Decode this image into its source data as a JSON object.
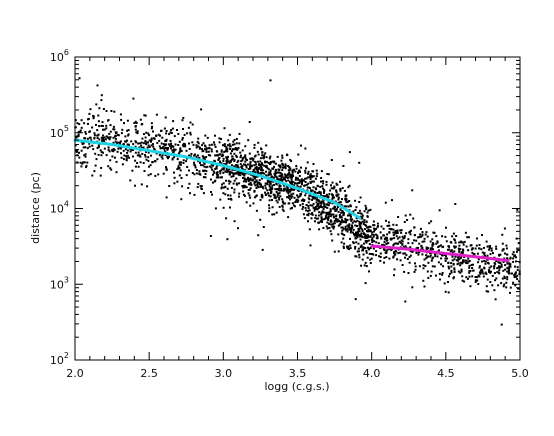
{
  "chart_data": {
    "type": "scatter",
    "xlabel": "logg (c.g.s.)",
    "ylabel": "distance (pc)",
    "xlim": [
      2.0,
      5.0
    ],
    "ylim": [
      100,
      1000000
    ],
    "y_scale": "log",
    "grid": false,
    "x_ticks": [
      {
        "value": 2.0,
        "label": "2.0"
      },
      {
        "value": 2.5,
        "label": "2.5"
      },
      {
        "value": 3.0,
        "label": "3.0"
      },
      {
        "value": 3.5,
        "label": "3.5"
      },
      {
        "value": 4.0,
        "label": "4.0"
      },
      {
        "value": 4.5,
        "label": "4.5"
      },
      {
        "value": 5.0,
        "label": "5.0"
      }
    ],
    "y_ticks": [
      {
        "value": 100,
        "base": "10",
        "exp": "2"
      },
      {
        "value": 1000,
        "base": "10",
        "exp": "3"
      },
      {
        "value": 10000,
        "base": "10",
        "exp": "4"
      },
      {
        "value": 100000,
        "base": "10",
        "exp": "5"
      },
      {
        "value": 1000000,
        "base": "10",
        "exp": "6"
      }
    ],
    "scatter_trend": [
      {
        "x": 2.0,
        "logy_center": 4.92,
        "logy_spread": 0.17
      },
      {
        "x": 2.5,
        "logy_center": 4.8,
        "logy_spread": 0.18
      },
      {
        "x": 3.0,
        "logy_center": 4.58,
        "logy_spread": 0.18
      },
      {
        "x": 3.5,
        "logy_center": 4.3,
        "logy_spread": 0.17
      },
      {
        "x": 4.0,
        "logy_center": 3.6,
        "logy_spread": 0.18
      },
      {
        "x": 4.5,
        "logy_center": 3.38,
        "logy_spread": 0.16
      },
      {
        "x": 5.0,
        "logy_center": 3.22,
        "logy_spread": 0.17
      }
    ],
    "point_color": "#000000",
    "series": [
      {
        "color": "#22d3e6",
        "x": [
          2.0,
          2.25,
          2.5,
          2.75,
          3.0,
          3.25,
          3.5,
          3.75,
          3.92
        ],
        "y": [
          80000,
          70000,
          58000,
          48000,
          37000,
          27000,
          18500,
          12000,
          7500
        ]
      },
      {
        "color": "#e020c8",
        "x": [
          4.0,
          4.25,
          4.5,
          4.75,
          4.92
        ],
        "y": [
          3200,
          2900,
          2550,
          2250,
          2050
        ]
      }
    ]
  }
}
